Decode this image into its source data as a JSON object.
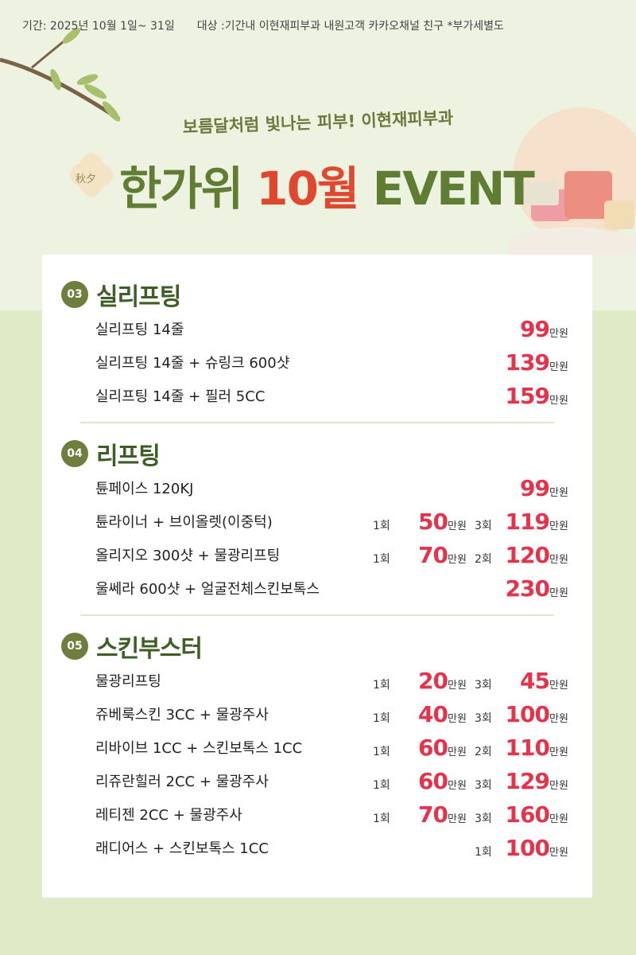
{
  "header": {
    "period": "기간: 2025년 10월 1일~ 31일",
    "target": "대상 :기간내 이현재피부과 내원고객 카카오채널 친구 *부가세별도"
  },
  "hero": {
    "subtitle": "보름달처럼 빛나는 피부! 이현재피부과",
    "badge": "秋夕",
    "title": [
      "한가위",
      "10월",
      "EVENT"
    ]
  },
  "unit": "만원",
  "sections": [
    {
      "number": "03",
      "title": "실리프팅",
      "items": [
        {
          "name": "실리프팅 14줄",
          "prices": [
            {
              "amount": 99
            }
          ]
        },
        {
          "name": "실리프팅 14줄 + 슈링크 600샷",
          "prices": [
            {
              "amount": 139
            }
          ]
        },
        {
          "name": "실리프팅 14줄 + 필러 5CC",
          "prices": [
            {
              "amount": 159
            }
          ]
        }
      ]
    },
    {
      "number": "04",
      "title": "리프팅",
      "items": [
        {
          "name": "튠페이스 120KJ",
          "prices": [
            {
              "amount": 99
            }
          ]
        },
        {
          "name": "튠라이너 + 브이올렛(이중턱)",
          "prices": [
            {
              "count": "1회",
              "amount": 50
            },
            {
              "count": "3회",
              "amount": 119
            }
          ]
        },
        {
          "name": "올리지오 300샷 + 물광리프팅",
          "prices": [
            {
              "count": "1회",
              "amount": 70
            },
            {
              "count": "2회",
              "amount": 120
            }
          ]
        },
        {
          "name": "울쎄라 600샷 + 얼굴전체스킨보톡스",
          "prices": [
            {
              "amount": 230
            }
          ]
        }
      ]
    },
    {
      "number": "05",
      "title": "스킨부스터",
      "items": [
        {
          "name": "물광리프팅",
          "prices": [
            {
              "count": "1회",
              "amount": 20
            },
            {
              "count": "3회",
              "amount": 45
            }
          ]
        },
        {
          "name": "쥬베룩스킨 3CC + 물광주사",
          "prices": [
            {
              "count": "1회",
              "amount": 40
            },
            {
              "count": "3회",
              "amount": 100
            }
          ]
        },
        {
          "name": "리바이브 1CC + 스킨보톡스 1CC",
          "prices": [
            {
              "count": "1회",
              "amount": 60
            },
            {
              "count": "2회",
              "amount": 110
            }
          ]
        },
        {
          "name": "리쥬란힐러 2CC + 물광주사",
          "prices": [
            {
              "count": "1회",
              "amount": 60
            },
            {
              "count": "3회",
              "amount": 129
            }
          ]
        },
        {
          "name": "레티젠 2CC + 물광주사",
          "prices": [
            {
              "count": "1회",
              "amount": 70
            },
            {
              "count": "3회",
              "amount": 160
            }
          ]
        },
        {
          "name": "래디어스 + 스킨보톡스 1CC",
          "prices": [
            {
              "count": "1회",
              "amount": 100
            }
          ]
        }
      ]
    }
  ]
}
